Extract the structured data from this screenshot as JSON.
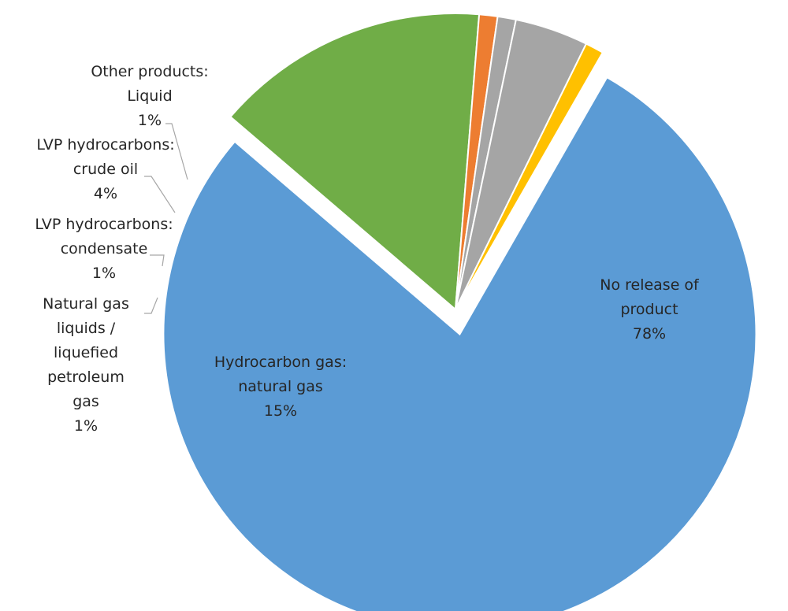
{
  "chart_data": {
    "type": "pie",
    "title": "",
    "slices": [
      {
        "label_lines": [
          "No release of",
          "product"
        ],
        "value": 78,
        "value_label": "78%",
        "color": "#5B9BD5",
        "exploded": true
      },
      {
        "label_lines": [
          "Hydrocarbon gas:",
          "natural gas"
        ],
        "value": 15,
        "value_label": "15%",
        "color": "#70AD47",
        "exploded": false
      },
      {
        "label_lines": [
          "Natural gas",
          "liquids /",
          "liquefied",
          "petroleum",
          "gas"
        ],
        "value": 1,
        "value_label": "1%",
        "color": "#ED7D31",
        "exploded": false
      },
      {
        "label_lines": [
          "LVP hydrocarbons:",
          "condensate"
        ],
        "value": 1,
        "value_label": "1%",
        "color": "#A5A5A5",
        "exploded": false
      },
      {
        "label_lines": [
          "LVP hydrocarbons:",
          "crude oil"
        ],
        "value": 4,
        "value_label": "4%",
        "color": "#A5A5A5",
        "exploded": false
      },
      {
        "label_lines": [
          "Other products:",
          "Liquid"
        ],
        "value": 1,
        "value_label": "1%",
        "color": "#FFC000",
        "exploded": false
      }
    ],
    "legend": "none"
  }
}
